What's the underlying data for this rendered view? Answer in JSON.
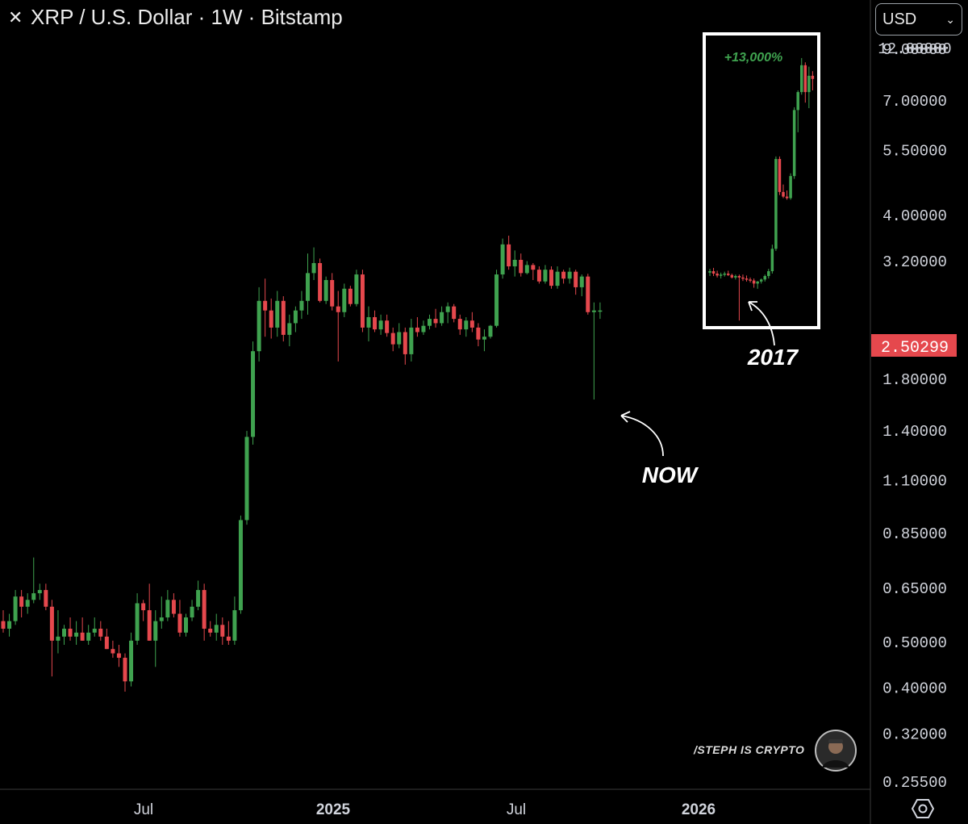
{
  "header": {
    "title": "XRP / U.S. Dollar · 1W · Bitstamp",
    "close_icon": "close-icon"
  },
  "currency_selector": {
    "value": "USD",
    "icon": "chevron-down-icon"
  },
  "settings_icon": "settings-icon",
  "watermark": {
    "text": "/STEPH IS CRYPTO",
    "avatar_icon": "avatar-icon"
  },
  "annotations": {
    "gain_label": "+13,000%",
    "year_label": "2017",
    "now_label": "NOW"
  },
  "colors": {
    "up": "#3fa24f",
    "down": "#e5484d",
    "price_tag": "#e5484d",
    "background": "#000000",
    "gain_text": "#3fa24f"
  },
  "chart_data": {
    "type": "candlestick",
    "title": "XRP / U.S. Dollar · 1W · Bitstamp",
    "scale": "log",
    "ylim": [
      0.24,
      12.8
    ],
    "y_ticks": [
      "12.00000",
      "9.00000",
      "7.00000",
      "5.50000",
      "4.00000",
      "3.20000",
      "2.50299",
      "1.80000",
      "1.40000",
      "1.10000",
      "0.85000",
      "0.65000",
      "0.50000",
      "0.40000",
      "0.32000",
      "0.25500"
    ],
    "x_ticks": [
      "Jul",
      "2025",
      "Jul",
      "2026"
    ],
    "current_price": "2.50299",
    "legend": "none",
    "grid": false,
    "candles": [
      [
        0.55,
        0.58,
        0.52,
        0.53
      ],
      [
        0.53,
        0.57,
        0.51,
        0.55
      ],
      [
        0.55,
        0.64,
        0.54,
        0.62
      ],
      [
        0.62,
        0.64,
        0.56,
        0.59
      ],
      [
        0.59,
        0.63,
        0.57,
        0.61
      ],
      [
        0.61,
        0.75,
        0.6,
        0.63
      ],
      [
        0.63,
        0.66,
        0.61,
        0.64
      ],
      [
        0.64,
        0.66,
        0.58,
        0.59
      ],
      [
        0.59,
        0.61,
        0.42,
        0.5
      ],
      [
        0.5,
        0.58,
        0.47,
        0.51
      ],
      [
        0.51,
        0.54,
        0.49,
        0.53
      ],
      [
        0.53,
        0.56,
        0.5,
        0.51
      ],
      [
        0.51,
        0.55,
        0.49,
        0.52
      ],
      [
        0.52,
        0.56,
        0.5,
        0.5
      ],
      [
        0.5,
        0.54,
        0.49,
        0.52
      ],
      [
        0.52,
        0.56,
        0.51,
        0.53
      ],
      [
        0.53,
        0.55,
        0.5,
        0.51
      ],
      [
        0.51,
        0.53,
        0.48,
        0.48
      ],
      [
        0.48,
        0.5,
        0.46,
        0.47
      ],
      [
        0.47,
        0.49,
        0.44,
        0.46
      ],
      [
        0.46,
        0.47,
        0.39,
        0.41
      ],
      [
        0.41,
        0.52,
        0.4,
        0.5
      ],
      [
        0.5,
        0.63,
        0.49,
        0.6
      ],
      [
        0.6,
        0.61,
        0.55,
        0.58
      ],
      [
        0.58,
        0.66,
        0.5,
        0.5
      ],
      [
        0.5,
        0.58,
        0.44,
        0.55
      ],
      [
        0.55,
        0.62,
        0.53,
        0.56
      ],
      [
        0.56,
        0.64,
        0.55,
        0.61
      ],
      [
        0.61,
        0.63,
        0.56,
        0.57
      ],
      [
        0.57,
        0.61,
        0.51,
        0.52
      ],
      [
        0.52,
        0.57,
        0.51,
        0.56
      ],
      [
        0.56,
        0.61,
        0.55,
        0.59
      ],
      [
        0.59,
        0.67,
        0.58,
        0.64
      ],
      [
        0.64,
        0.66,
        0.5,
        0.53
      ],
      [
        0.53,
        0.55,
        0.51,
        0.52
      ],
      [
        0.52,
        0.57,
        0.5,
        0.54
      ],
      [
        0.54,
        0.56,
        0.49,
        0.51
      ],
      [
        0.51,
        0.55,
        0.49,
        0.5
      ],
      [
        0.5,
        0.62,
        0.49,
        0.58
      ],
      [
        0.58,
        0.92,
        0.57,
        0.9
      ],
      [
        0.9,
        1.39,
        0.88,
        1.35
      ],
      [
        1.35,
        2.15,
        1.3,
        2.05
      ],
      [
        2.05,
        2.8,
        1.95,
        2.62
      ],
      [
        2.62,
        2.92,
        2.2,
        2.5
      ],
      [
        2.5,
        2.65,
        2.18,
        2.3
      ],
      [
        2.3,
        2.75,
        2.2,
        2.62
      ],
      [
        2.62,
        2.68,
        2.15,
        2.22
      ],
      [
        2.22,
        2.45,
        2.1,
        2.35
      ],
      [
        2.35,
        2.55,
        2.25,
        2.5
      ],
      [
        2.5,
        2.75,
        2.4,
        2.62
      ],
      [
        2.62,
        3.3,
        2.45,
        3.0
      ],
      [
        3.0,
        3.4,
        2.9,
        3.15
      ],
      [
        3.15,
        3.22,
        2.6,
        2.62
      ],
      [
        2.62,
        2.95,
        2.58,
        2.9
      ],
      [
        2.9,
        3.0,
        2.5,
        2.55
      ],
      [
        2.55,
        2.75,
        1.95,
        2.48
      ],
      [
        2.48,
        2.85,
        2.42,
        2.78
      ],
      [
        2.78,
        2.82,
        2.55,
        2.58
      ],
      [
        2.58,
        3.05,
        2.55,
        2.98
      ],
      [
        2.98,
        3.05,
        2.25,
        2.3
      ],
      [
        2.3,
        2.55,
        2.15,
        2.42
      ],
      [
        2.42,
        2.5,
        2.25,
        2.28
      ],
      [
        2.28,
        2.45,
        2.22,
        2.38
      ],
      [
        2.38,
        2.45,
        2.2,
        2.24
      ],
      [
        2.24,
        2.3,
        2.05,
        2.12
      ],
      [
        2.12,
        2.35,
        2.08,
        2.25
      ],
      [
        2.25,
        2.3,
        1.92,
        2.02
      ],
      [
        2.02,
        2.4,
        1.95,
        2.3
      ],
      [
        2.3,
        2.42,
        2.2,
        2.25
      ],
      [
        2.25,
        2.38,
        2.22,
        2.32
      ],
      [
        2.32,
        2.45,
        2.28,
        2.4
      ],
      [
        2.4,
        2.52,
        2.3,
        2.35
      ],
      [
        2.35,
        2.55,
        2.32,
        2.48
      ],
      [
        2.48,
        2.6,
        2.35,
        2.55
      ],
      [
        2.55,
        2.58,
        2.36,
        2.4
      ],
      [
        2.4,
        2.45,
        2.22,
        2.28
      ],
      [
        2.28,
        2.42,
        2.2,
        2.38
      ],
      [
        2.38,
        2.48,
        2.25,
        2.3
      ],
      [
        2.3,
        2.35,
        2.1,
        2.17
      ],
      [
        2.17,
        2.28,
        2.05,
        2.2
      ],
      [
        2.2,
        2.33,
        2.18,
        2.32
      ],
      [
        2.32,
        3.05,
        2.3,
        2.98
      ],
      [
        2.98,
        3.55,
        2.92,
        3.45
      ],
      [
        3.45,
        3.6,
        3.05,
        3.1
      ],
      [
        3.1,
        3.35,
        2.95,
        3.2
      ],
      [
        3.2,
        3.3,
        2.95,
        3.0
      ],
      [
        3.0,
        3.18,
        2.98,
        3.12
      ],
      [
        3.12,
        3.15,
        2.9,
        3.05
      ],
      [
        3.05,
        3.1,
        2.85,
        2.88
      ],
      [
        2.88,
        3.12,
        2.85,
        3.05
      ],
      [
        3.05,
        3.1,
        2.78,
        2.82
      ],
      [
        2.82,
        3.1,
        2.78,
        3.02
      ],
      [
        3.02,
        3.05,
        2.85,
        2.92
      ],
      [
        2.92,
        3.08,
        2.85,
        3.02
      ],
      [
        3.02,
        3.05,
        2.7,
        2.8
      ],
      [
        2.8,
        2.98,
        2.68,
        2.95
      ],
      [
        2.95,
        2.99,
        2.45,
        2.48
      ],
      [
        2.48,
        2.6,
        1.62,
        2.5
      ],
      [
        2.5,
        2.6,
        2.4,
        2.5
      ]
    ],
    "inset_2017": {
      "label_gain": "+13,000%",
      "label_year": "2017",
      "candles": [
        [
          3.62,
          3.7,
          3.55,
          3.65
        ],
        [
          3.65,
          3.72,
          3.55,
          3.6
        ],
        [
          3.6,
          3.66,
          3.52,
          3.56
        ],
        [
          3.56,
          3.62,
          3.5,
          3.58
        ],
        [
          3.58,
          3.64,
          3.54,
          3.6
        ],
        [
          3.6,
          3.66,
          3.55,
          3.57
        ],
        [
          3.57,
          3.6,
          3.5,
          3.52
        ],
        [
          3.52,
          3.58,
          3.48,
          3.55
        ],
        [
          3.55,
          3.58,
          2.75,
          3.52
        ],
        [
          3.52,
          3.58,
          3.45,
          3.5
        ],
        [
          3.5,
          3.56,
          3.44,
          3.48
        ],
        [
          3.48,
          3.52,
          3.42,
          3.46
        ],
        [
          3.46,
          3.5,
          3.32,
          3.4
        ],
        [
          3.4,
          3.45,
          3.3,
          3.44
        ],
        [
          3.44,
          3.5,
          3.4,
          3.48
        ],
        [
          3.48,
          3.58,
          3.44,
          3.55
        ],
        [
          3.55,
          3.7,
          3.5,
          3.65
        ],
        [
          3.65,
          4.25,
          3.6,
          4.15
        ],
        [
          4.15,
          7.05,
          4.1,
          6.95
        ],
        [
          6.95,
          7.05,
          5.65,
          5.75
        ],
        [
          5.75,
          6.0,
          5.55,
          5.6
        ],
        [
          5.6,
          5.8,
          5.5,
          5.55
        ],
        [
          5.55,
          6.4,
          5.5,
          6.3
        ],
        [
          6.3,
          9.35,
          6.2,
          9.2
        ],
        [
          9.2,
          10.3,
          8.1,
          10.2
        ],
        [
          10.2,
          12.4,
          10.05,
          11.9
        ],
        [
          11.9,
          12.1,
          9.6,
          10.2
        ],
        [
          10.2,
          11.8,
          9.3,
          11.2
        ],
        [
          11.2,
          11.5,
          10.3,
          11.0
        ]
      ]
    }
  }
}
